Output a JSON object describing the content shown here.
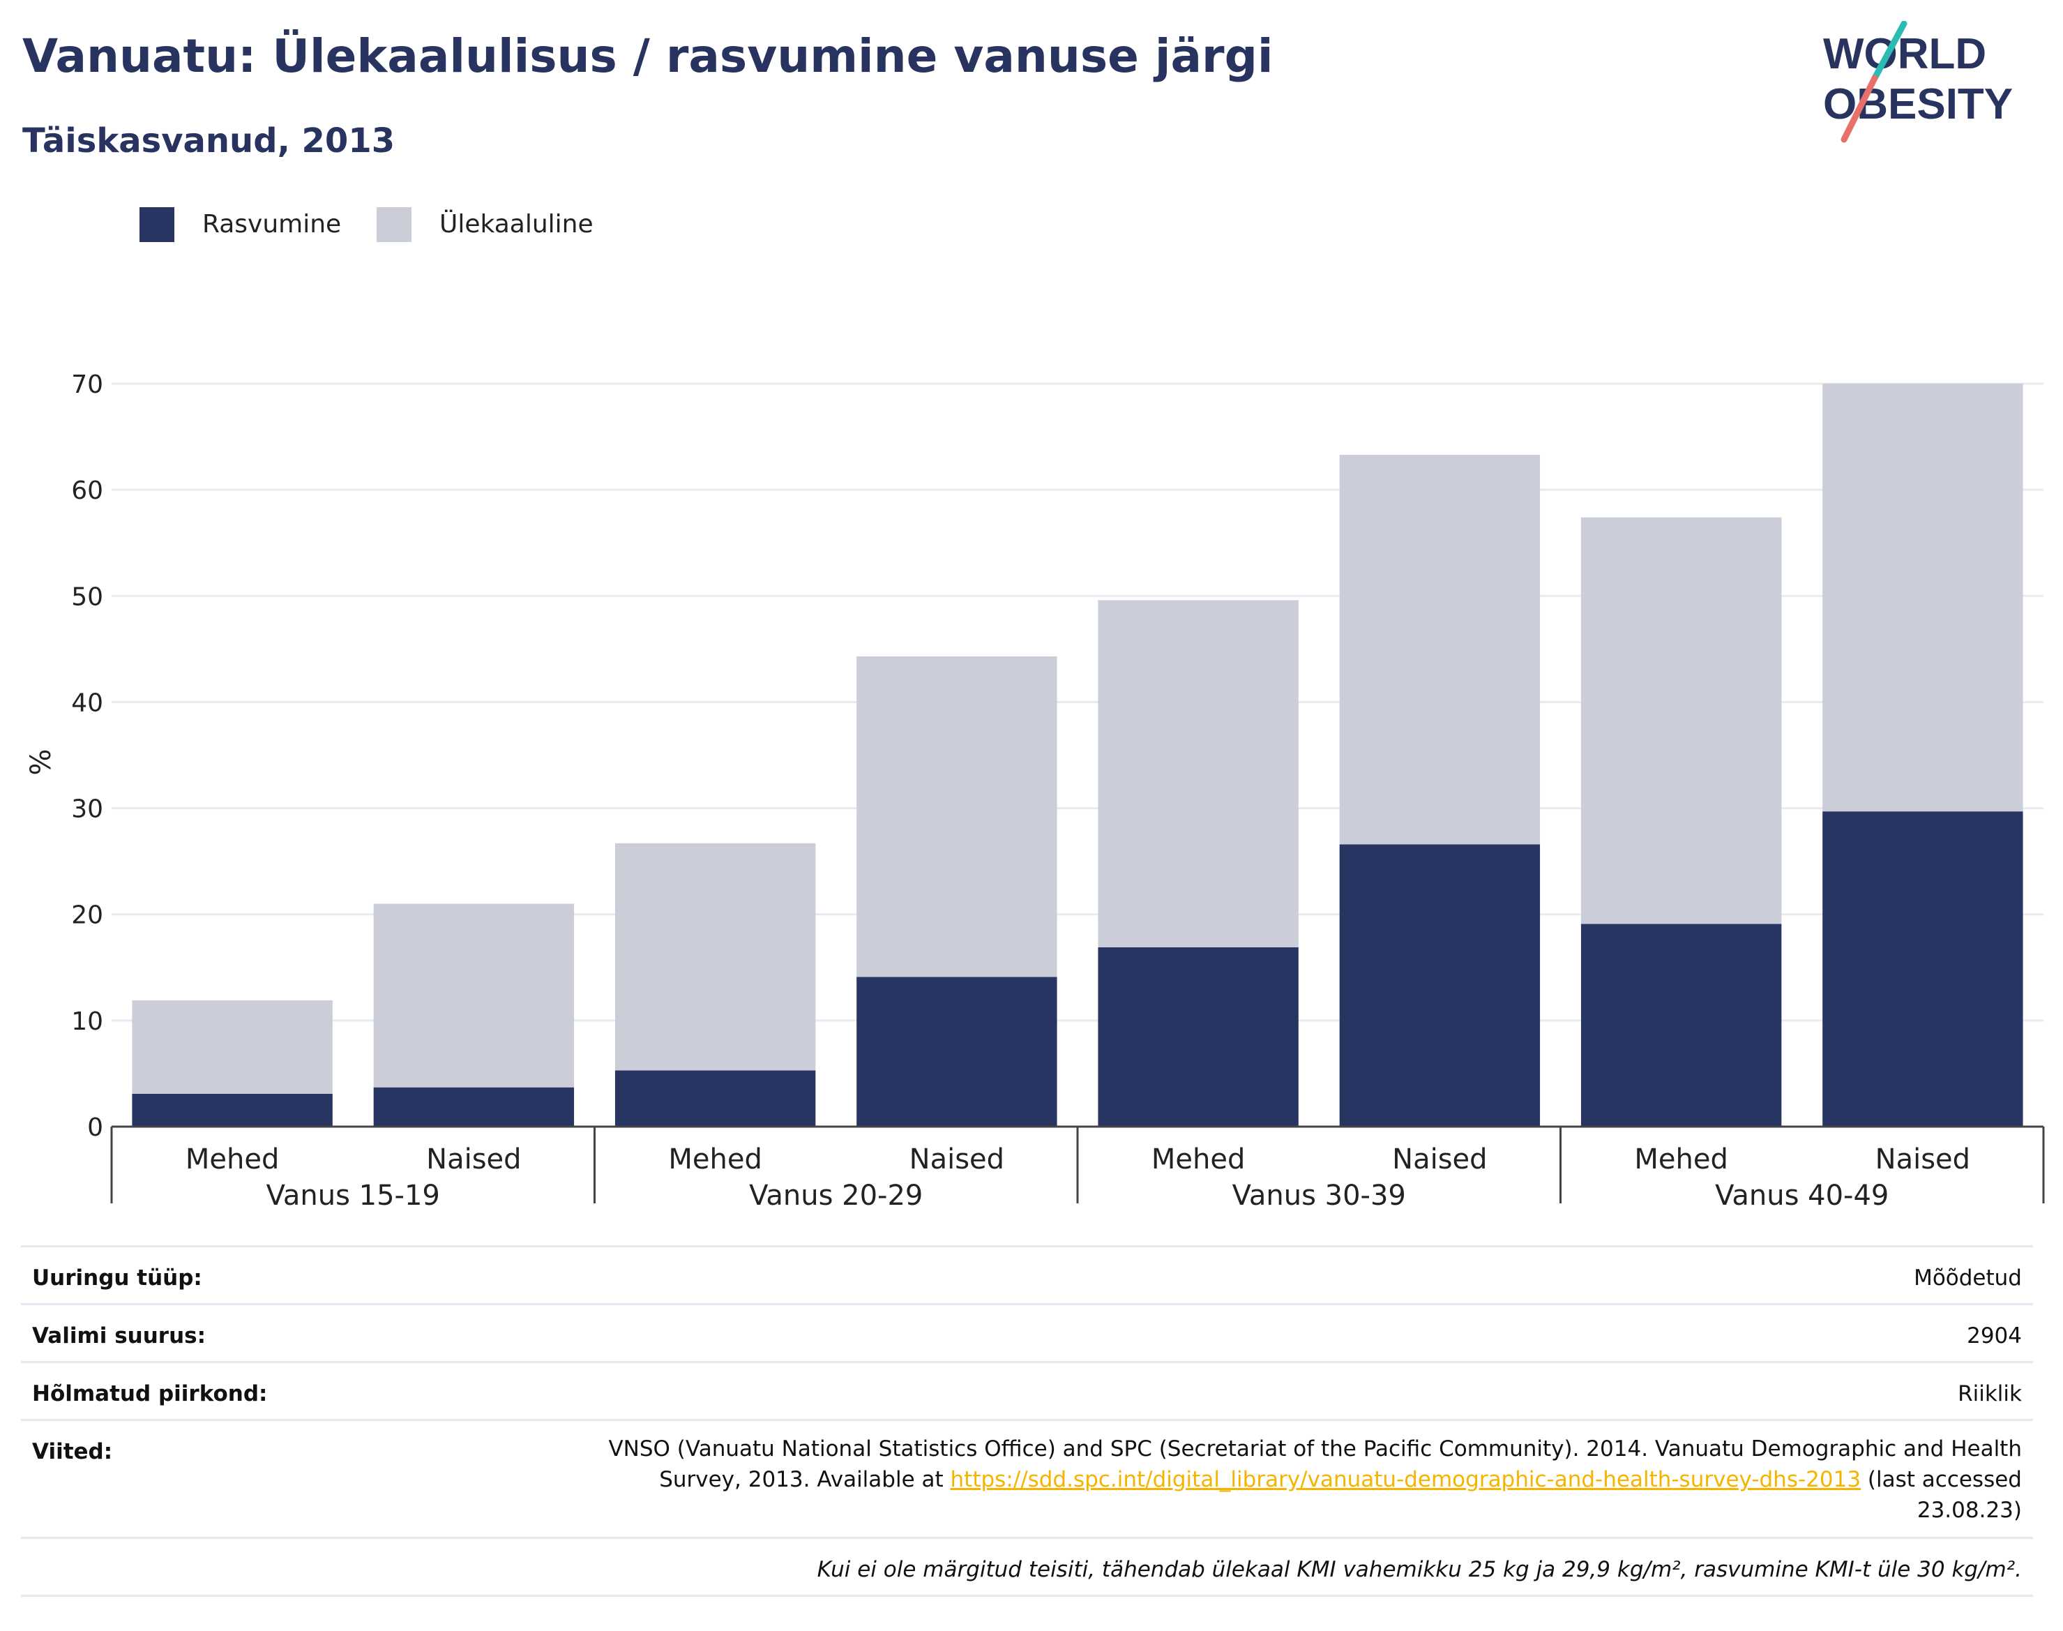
{
  "header": {
    "title": "Vanuatu: Ülekaalulisus / rasvumine vanuse järgi",
    "subtitle": "Täiskasvanud, 2013"
  },
  "logo": {
    "line1": "WORLD",
    "line2": "OBESITY",
    "colors": {
      "text": "#283360",
      "slash_top": "#2bbbb5",
      "slash_bottom": "#e8706a"
    }
  },
  "legend": [
    {
      "label": "Rasvumine",
      "color": "#283562"
    },
    {
      "label": "Ülekaaluline",
      "color": "#cbcdd8"
    }
  ],
  "chart_data": {
    "type": "bar",
    "stacked": true,
    "ylabel": "%",
    "ylim": [
      0,
      70
    ],
    "yticks": [
      0,
      10,
      20,
      30,
      40,
      50,
      60,
      70
    ],
    "grid": true,
    "legend_position": "top-left",
    "categories": [
      "Mehed",
      "Naised",
      "Mehed",
      "Naised",
      "Mehed",
      "Naised",
      "Mehed",
      "Naised"
    ],
    "groups": [
      "Vanus 15-19",
      "Vanus 20-29",
      "Vanus 30-39",
      "Vanus 40-49"
    ],
    "series": [
      {
        "name": "Rasvumine",
        "color": "#283562",
        "values": [
          3.1,
          3.7,
          5.3,
          14.1,
          16.9,
          26.6,
          19.1,
          29.7
        ]
      },
      {
        "name": "Ülekaaluline",
        "color": "#cbcdd8",
        "values": [
          8.8,
          17.3,
          21.4,
          30.2,
          32.7,
          36.7,
          38.3,
          40.3
        ]
      }
    ]
  },
  "meta": {
    "rows": [
      {
        "label": "Uuringu tüüp:",
        "value": "Mõõdetud"
      },
      {
        "label": "Valimi suurus:",
        "value": "2904"
      },
      {
        "label": "Hõlmatud piirkond:",
        "value": "Riiklik"
      }
    ],
    "references": {
      "label": "Viited:",
      "line1": "VNSO (Vanuatu National Statistics Office) and SPC (Secretariat of the Pacific Community). 2014. Vanuatu Demographic and Health",
      "line2_pre": "Survey, 2013. Available at ",
      "link": "https://sdd.spc.int/digital_library/vanuatu-demographic-and-health-survey-dhs-2013",
      "line2_post": " (last accessed",
      "line3": "23.08.23)"
    },
    "note": "Kui ei ole märgitud teisiti, tähendab ülekaal KMI vahemikku 25 kg ja 29,9 kg/m², rasvumine KMI-t üle 30 kg/m²."
  }
}
